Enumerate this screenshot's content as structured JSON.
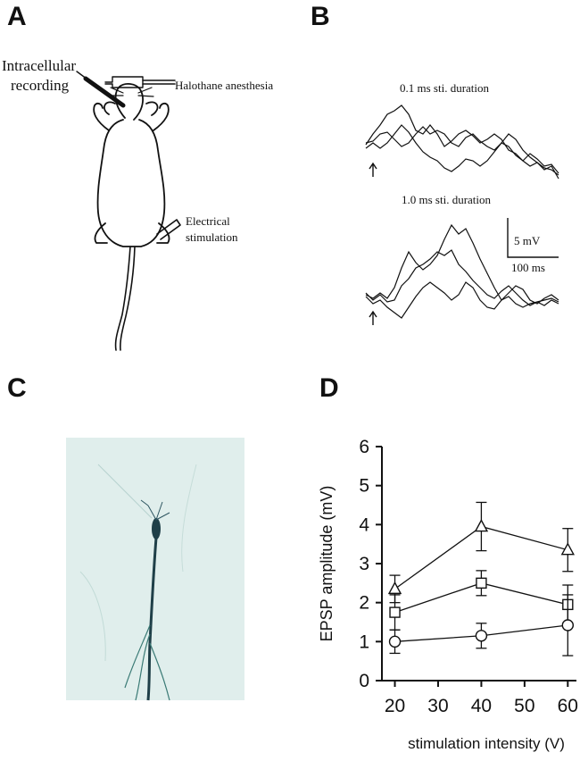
{
  "panels": {
    "a": {
      "letter": "A",
      "recording_label_line1": "Intracellular",
      "recording_label_line2": "recording",
      "anesthesia_label": "Halothane anesthesia",
      "stim_label_line1": "Electrical",
      "stim_label_line2": "stimulation"
    },
    "b": {
      "letter": "B",
      "trace_title_1": "0.1 ms sti. duration",
      "trace_title_2": "1.0 ms sti. duration",
      "scale_v": "5 mV",
      "scale_t": "100 ms"
    },
    "c": {
      "letter": "C"
    },
    "d": {
      "letter": "D"
    }
  },
  "colors": {
    "ink": "#111111",
    "stain_bg": "#e4f0ee",
    "stain_cell": "#1f3f48"
  },
  "chart_data": {
    "type": "line",
    "xlabel": "stimulation intensity (V)",
    "ylabel": "EPSP amplitude (mV)",
    "xlim": [
      17,
      62
    ],
    "ylim": [
      0,
      6
    ],
    "xticks": [
      20,
      30,
      40,
      50,
      60
    ],
    "yticks": [
      0,
      1,
      2,
      3,
      4,
      5,
      6
    ],
    "x": [
      20,
      40,
      60
    ],
    "series": [
      {
        "marker": "triangle",
        "values": [
          2.35,
          3.95,
          3.35
        ],
        "errors": [
          0.35,
          0.62,
          0.55
        ]
      },
      {
        "marker": "square",
        "values": [
          1.75,
          2.5,
          1.95
        ],
        "errors": [
          0.45,
          0.32,
          0.5
        ]
      },
      {
        "marker": "circle",
        "values": [
          1.0,
          1.15,
          1.42
        ],
        "errors": [
          0.3,
          0.32,
          0.78
        ]
      }
    ],
    "grid": false
  }
}
